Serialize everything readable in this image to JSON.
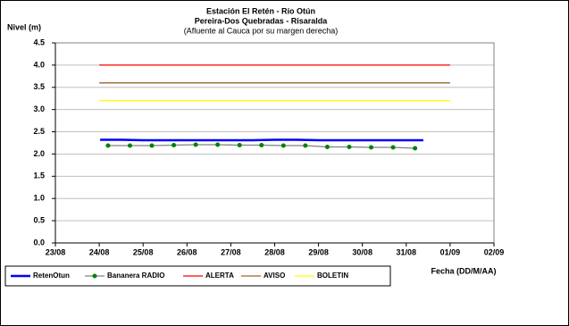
{
  "chart_data": {
    "type": "line",
    "title": "Estación El Retén - Río Otún",
    "subtitle": [
      "Pereira-Dos Quebradas - Risaralda",
      "(Afluente al Cauca por su margen derecha)"
    ],
    "y_label": "Nivel (m)",
    "x_label": "Fecha (DD/M/AA)",
    "xlim": [
      0,
      10
    ],
    "xticks": [
      {
        "value": 0,
        "label": "23/08"
      },
      {
        "value": 1,
        "label": "24/08"
      },
      {
        "value": 2,
        "label": "25/08"
      },
      {
        "value": 3,
        "label": "26/08"
      },
      {
        "value": 4,
        "label": "27/08"
      },
      {
        "value": 5,
        "label": "28/08"
      },
      {
        "value": 6,
        "label": "29/08"
      },
      {
        "value": 7,
        "label": "30/08"
      },
      {
        "value": 8,
        "label": "31/08"
      },
      {
        "value": 9,
        "label": "01/09"
      },
      {
        "value": 10,
        "label": "02/09"
      }
    ],
    "ylim": [
      0,
      4.5
    ],
    "yticks": [
      {
        "value": 0,
        "label": "0.0"
      },
      0.5,
      {
        "value": 1,
        "label": "1.0"
      },
      1.5,
      {
        "value": 2,
        "label": "2.0"
      },
      2.5,
      {
        "value": 3,
        "label": "3.0"
      },
      3.5,
      {
        "value": 4,
        "label": "4.0"
      },
      4.5
    ],
    "grid": true,
    "legend": "bottom",
    "series": [
      {
        "name": "RetenOtun",
        "color": "#0000ff",
        "markers": false,
        "x": [
          1.02,
          1.5,
          2,
          2.5,
          3,
          3.5,
          4,
          4.5,
          5,
          5.5,
          6,
          6.5,
          7,
          7.5,
          8,
          8.39
        ],
        "values": [
          2.32,
          2.32,
          2.31,
          2.31,
          2.31,
          2.31,
          2.31,
          2.31,
          2.32,
          2.32,
          2.31,
          2.31,
          2.31,
          2.31,
          2.31,
          2.31
        ]
      },
      {
        "name": "Bananera RADIO",
        "color": "#808080",
        "marker_color": "#008000",
        "markers": true,
        "x": [
          1.2,
          1.7,
          2.2,
          2.7,
          3.2,
          3.7,
          4.2,
          4.7,
          5.2,
          5.7,
          6.2,
          6.7,
          7.2,
          7.7,
          8.2
        ],
        "values": [
          2.19,
          2.19,
          2.19,
          2.2,
          2.21,
          2.21,
          2.2,
          2.2,
          2.19,
          2.19,
          2.16,
          2.16,
          2.15,
          2.15,
          2.13
        ]
      },
      {
        "name": "ALERTA",
        "color": "#ff0000",
        "markers": false,
        "x": [
          1,
          9
        ],
        "values": [
          4.0,
          4.0
        ]
      },
      {
        "name": "AVISO",
        "color": "#996633",
        "markers": false,
        "x": [
          1,
          9
        ],
        "values": [
          3.6,
          3.6
        ]
      },
      {
        "name": "BOLETIN",
        "color": "#ffff00",
        "markers": false,
        "x": [
          1,
          9
        ],
        "values": [
          3.2,
          3.2
        ]
      }
    ]
  }
}
